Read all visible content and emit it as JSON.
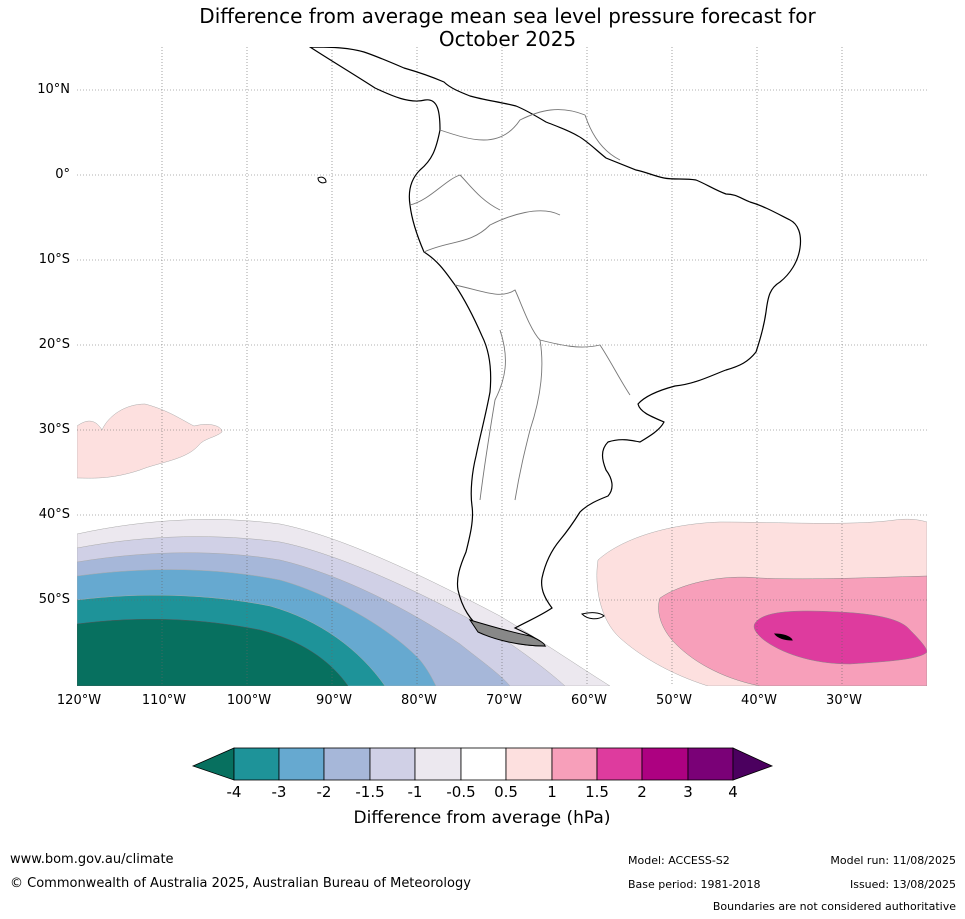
{
  "title_line1": "Difference from average mean sea level pressure forecast for",
  "title_line2": "October 2025",
  "lat_labels": [
    "10°N",
    "0°",
    "10°S",
    "20°S",
    "30°S",
    "40°S",
    "50°S"
  ],
  "lon_labels": [
    "120°W",
    "110°W",
    "100°W",
    "90°W",
    "80°W",
    "70°W",
    "60°W",
    "50°W",
    "40°W",
    "30°W"
  ],
  "colorbar": {
    "ticks": [
      "-4",
      "-3",
      "-2",
      "-1.5",
      "-1",
      "-0.5",
      "0.5",
      "1",
      "1.5",
      "2",
      "3",
      "4"
    ],
    "colors": [
      "#07705f",
      "#1e9399",
      "#66a9d0",
      "#a6b7d9",
      "#d0d0e6",
      "#ece8ef",
      "#ffffff",
      "#fde0df",
      "#f79fba",
      "#de3b9e",
      "#ad0181",
      "#7a0177",
      "#4b005f"
    ],
    "label": "Difference from average (hPa)"
  },
  "footer": {
    "url": "www.bom.gov.au/climate",
    "copyright": "© Commonwealth of Australia 2025, Australian Bureau of Meteorology",
    "model": "Model: ACCESS-S2",
    "base_period": "Base period: 1981-2018",
    "model_run": "Model run: 11/08/2025",
    "issued": "Issued: 13/08/2025",
    "disclaimer": "Boundaries are not considered authoritative"
  }
}
